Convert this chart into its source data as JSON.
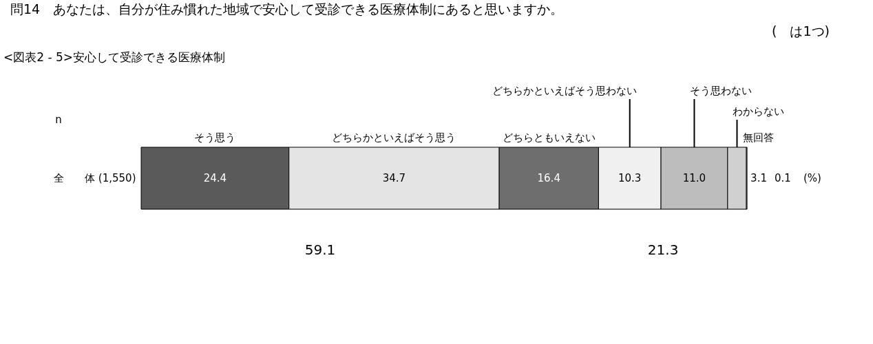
{
  "chart_data": {
    "type": "bar",
    "orientation": "horizontal",
    "stacked": true,
    "title": "問14　あなたは、自分が住み慣れた地域で安心して受診できる医療体制にあると思いますか。",
    "subtitle": "<図表2 - 5>安心して受診できる医療体制",
    "categories": [
      "全　　体 (1,550)"
    ],
    "series": [
      {
        "name": "そう思う",
        "color": "#5a5a5a",
        "values": [
          24.4
        ],
        "value_labels": [
          "24.4"
        ]
      },
      {
        "name": "どちらかといえばそう思う",
        "color": "#e4e4e4",
        "values": [
          34.7
        ],
        "value_labels": [
          "34.7"
        ]
      },
      {
        "name": "どちらともいえない",
        "color": "#6e6e6e",
        "values": [
          16.4
        ],
        "value_labels": [
          "16.4"
        ]
      },
      {
        "name": "どちらかといえばそう思わない",
        "color": "#f0f0f0",
        "values": [
          10.3
        ],
        "value_labels": [
          "10.3"
        ]
      },
      {
        "name": "そう思わない",
        "color": "#bdbdbd",
        "values": [
          11.0
        ],
        "value_labels": [
          "11.0"
        ]
      },
      {
        "name": "わからない",
        "color": "#d0d0d0",
        "values": [
          3.1
        ],
        "value_labels": [
          "3.1"
        ]
      },
      {
        "name": "無回答",
        "color": "#ffffff",
        "values": [
          0.1
        ],
        "value_labels": [
          "0.1"
        ]
      }
    ],
    "xlim": [
      0,
      100
    ],
    "tick_labels": "y",
    "annotations": [
      "(　は1つ)",
      "n",
      "(%)",
      "59.1",
      "21.3"
    ]
  }
}
